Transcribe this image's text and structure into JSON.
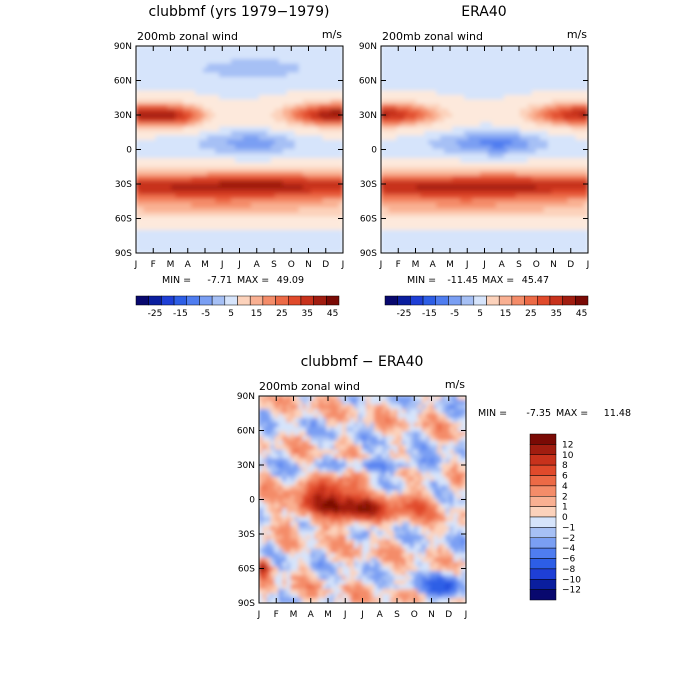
{
  "chart_data": [
    {
      "type": "heatmap",
      "title": "clubbmf (yrs 1979−1979)",
      "subtitle": "200mb zonal wind",
      "units": "m/s",
      "xlabel": "",
      "ylabel": "",
      "x_ticks": [
        "J",
        "F",
        "M",
        "A",
        "M",
        "J",
        "J",
        "A",
        "S",
        "O",
        "N",
        "D",
        "J"
      ],
      "y_ticks": [
        "90N",
        "60N",
        "30N",
        "0",
        "30S",
        "60S",
        "90S"
      ],
      "stats": {
        "min_label": "MIN =",
        "min": "-7.71",
        "max_label": "MAX =",
        "max": "49.09"
      },
      "colorbar_labels": [
        "-25",
        "-15",
        "-5",
        "5",
        "15",
        "25",
        "35",
        "45"
      ],
      "colorbar_levels": [
        -30,
        -25,
        -20,
        -15,
        -10,
        -5,
        0,
        5,
        10,
        15,
        20,
        25,
        30,
        35,
        40,
        45,
        50
      ],
      "features": [
        {
          "lat": 30,
          "month": 0.5,
          "value": 46,
          "width_months": 2.5,
          "width_lat": 11
        },
        {
          "lat": 30,
          "month": 11.5,
          "value": 49,
          "width_months": 2.5,
          "width_lat": 11
        },
        {
          "lat": 28,
          "month": 2.8,
          "value": 35,
          "width_months": 1.5,
          "width_lat": 10
        },
        {
          "lat": -28,
          "month": 7.0,
          "value": 43,
          "width_months": 2.5,
          "width_lat": 9
        },
        {
          "lat": -45,
          "month": 5.0,
          "value": 30,
          "width_months": 6.0,
          "width_lat": 14
        },
        {
          "lat": 5,
          "month": 7.0,
          "value": -7.7,
          "width_months": 2.0,
          "width_lat": 10
        },
        {
          "lat": 70,
          "month": 7.0,
          "value": -5,
          "width_months": 3.0,
          "width_lat": 8
        }
      ]
    },
    {
      "type": "heatmap",
      "title": "ERA40",
      "subtitle": "200mb zonal wind",
      "units": "m/s",
      "xlabel": "",
      "ylabel": "",
      "x_ticks": [
        "J",
        "F",
        "M",
        "A",
        "M",
        "J",
        "J",
        "A",
        "S",
        "O",
        "N",
        "D",
        "J"
      ],
      "y_ticks": [
        "90N",
        "60N",
        "30N",
        "0",
        "30S",
        "60S",
        "90S"
      ],
      "stats": {
        "min_label": "MIN =",
        "min": "-11.45",
        "max_label": "MAX =",
        "max": "45.47"
      },
      "colorbar_labels": [
        "-25",
        "-15",
        "-5",
        "5",
        "15",
        "25",
        "35",
        "45"
      ],
      "colorbar_levels": [
        -30,
        -25,
        -20,
        -15,
        -10,
        -5,
        0,
        5,
        10,
        15,
        20,
        25,
        30,
        35,
        40,
        45,
        50
      ],
      "features": [
        {
          "lat": 30,
          "month": 0.5,
          "value": 45,
          "width_months": 2.5,
          "width_lat": 11
        },
        {
          "lat": 30,
          "month": 11.5,
          "value": 45,
          "width_months": 2.5,
          "width_lat": 11
        },
        {
          "lat": -28,
          "month": 7.0,
          "value": 40,
          "width_months": 2.5,
          "width_lat": 9
        },
        {
          "lat": -45,
          "month": 5.0,
          "value": 30,
          "width_months": 6.0,
          "width_lat": 14
        },
        {
          "lat": 5,
          "month": 7.0,
          "value": -11.45,
          "width_months": 2.0,
          "width_lat": 10
        }
      ]
    },
    {
      "type": "heatmap",
      "title": "clubbmf − ERA40",
      "subtitle": "200mb zonal wind",
      "units": "m/s",
      "xlabel": "",
      "ylabel": "",
      "x_ticks": [
        "J",
        "F",
        "M",
        "A",
        "M",
        "J",
        "J",
        "A",
        "S",
        "O",
        "N",
        "D",
        "J"
      ],
      "y_ticks": [
        "90N",
        "60N",
        "30N",
        "0",
        "30S",
        "60S",
        "90S"
      ],
      "stats": {
        "min_label": "MIN =",
        "min": "-7.35",
        "max_label": "MAX =",
        "max": "11.48"
      },
      "colorbar_labels": [
        "12",
        "10",
        "8",
        "6",
        "4",
        "2",
        "1",
        "0",
        "−1",
        "−2",
        "−4",
        "−6",
        "−8",
        "−10",
        "−12"
      ],
      "colorbar_levels": [
        -12,
        -10,
        -8,
        -6,
        -4,
        -2,
        -1,
        0,
        1,
        2,
        4,
        6,
        8,
        10,
        12
      ],
      "features": [
        {
          "lat": -5,
          "month": 4.0,
          "value": 9,
          "width_months": 2.0,
          "width_lat": 14
        },
        {
          "lat": -10,
          "month": 6.0,
          "value": 8,
          "width_months": 1.5,
          "width_lat": 10
        },
        {
          "lat": 15,
          "month": 4.5,
          "value": 6,
          "width_months": 1.5,
          "width_lat": 10
        },
        {
          "lat": -5,
          "month": 9.0,
          "value": 5,
          "width_months": 1.5,
          "width_lat": 12
        },
        {
          "lat": 30,
          "month": 7.0,
          "value": -5,
          "width_months": 3.5,
          "width_lat": 6
        },
        {
          "lat": -75,
          "month": 10.8,
          "value": -7.35,
          "width_months": 1.0,
          "width_lat": 10
        },
        {
          "lat": -60,
          "month": 0.2,
          "value": 11.48,
          "width_months": 0.5,
          "width_lat": 8
        }
      ]
    }
  ]
}
